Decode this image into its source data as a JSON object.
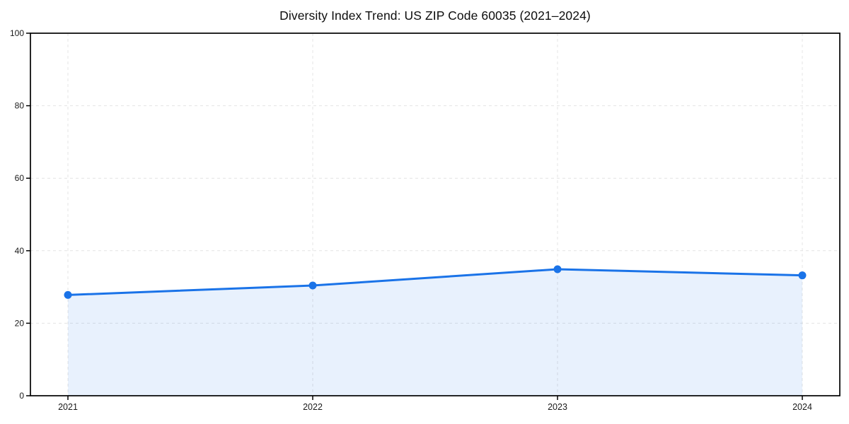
{
  "chart_data": {
    "type": "line",
    "title": "Diversity Index Trend: US ZIP Code 60035 (2021–2024)",
    "x": [
      "2021",
      "2022",
      "2023",
      "2024"
    ],
    "series": [
      {
        "name": "Diversity Index",
        "values": [
          27.8,
          30.4,
          34.9,
          33.2
        ]
      }
    ],
    "xlabel": "",
    "ylabel": "",
    "ylim": [
      0,
      100
    ],
    "yticks": [
      0,
      20,
      40,
      60,
      80,
      100
    ],
    "area_fill": true,
    "grid": "dashed, horizontal and vertical",
    "legend": "none",
    "markers": "filled circles",
    "colors": {
      "line": "#1a73e8",
      "marker": "#1a73e8",
      "area": "rgba(26,115,232,0.10)",
      "grid": "#e4e4e4",
      "axis": "#000000",
      "tick_text": "#1a1a1a",
      "title_text": "#0d0d0d",
      "background": "#ffffff"
    }
  }
}
